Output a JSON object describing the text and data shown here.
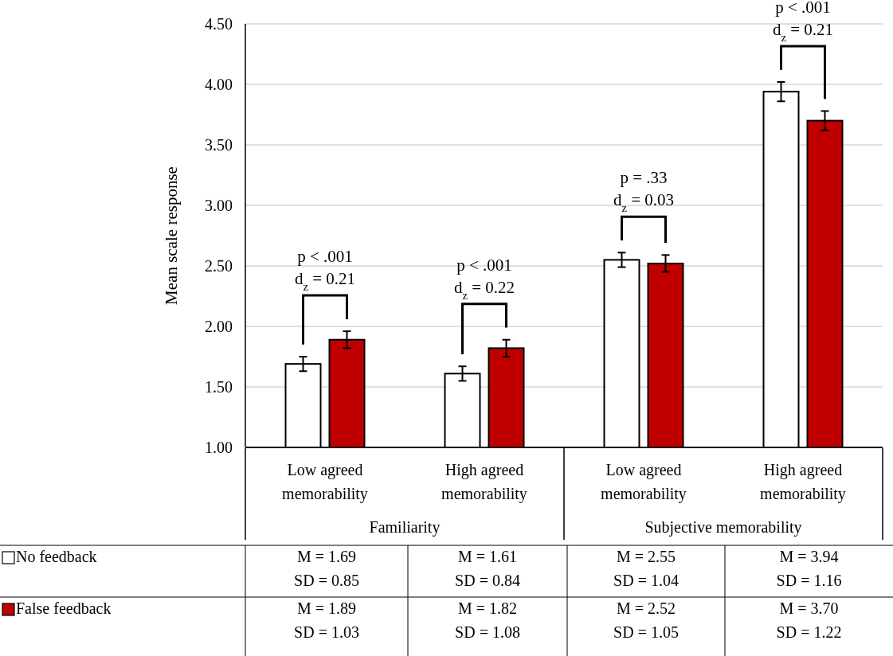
{
  "chart_data": {
    "type": "bar",
    "ylabel": "Mean scale response",
    "categories": [
      "Low agreed memorability",
      "High agreed memorability",
      "Low agreed memorability",
      "High agreed memorability"
    ],
    "series": [
      {
        "name": "No feedback",
        "color": "#ffffff",
        "values": [
          1.69,
          1.61,
          2.55,
          3.94
        ],
        "errors": [
          0.06,
          0.06,
          0.06,
          0.08
        ],
        "value_labels": [
          "M = 1.69\nSD = 0.85",
          "M = 1.61\nSD = 0.84",
          "M = 2.55\nSD = 1.04",
          "M = 3.94\nSD = 1.16"
        ]
      },
      {
        "name": "False feedback",
        "color": "#c00000",
        "values": [
          1.89,
          1.82,
          2.52,
          3.7
        ],
        "errors": [
          0.07,
          0.07,
          0.07,
          0.08
        ],
        "value_labels": [
          "M = 1.89\nSD = 1.03",
          "M = 1.82\nSD = 1.08",
          "M = 2.52\nSD = 1.05",
          "M = 3.70\nSD = 1.22"
        ]
      }
    ],
    "ylim": [
      1,
      4.5
    ],
    "yticks": [
      {
        "value": 1,
        "label": "1.00"
      },
      {
        "value": 1.5,
        "label": "1.50"
      },
      {
        "value": 2,
        "label": "2.00"
      },
      {
        "value": 2.5,
        "label": "2.50"
      },
      {
        "value": 3,
        "label": "3.00"
      },
      {
        "value": 3.5,
        "label": "3.50"
      },
      {
        "value": 4,
        "label": "4.00"
      },
      {
        "value": 4.5,
        "label": "4.50"
      }
    ],
    "grid": "y",
    "legend": "bottom left",
    "annotations": [
      "p < .001\nd$_{z}$ = 0.21",
      "p < .001\nd$_{z}$ = 0.22",
      "p = .33\nd$_{z}$ = 0.03",
      "p < .001\nd$_{z}$ = 0.21",
      "Familiarity",
      "Subjective memorability"
    ]
  }
}
